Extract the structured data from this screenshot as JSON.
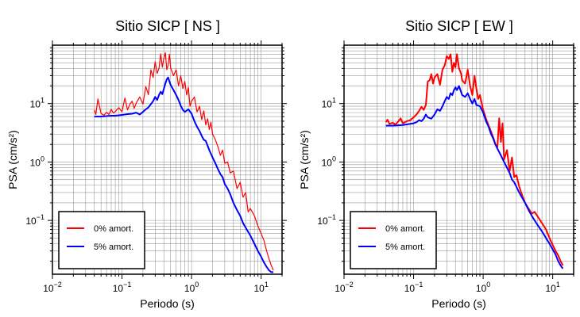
{
  "chart_data": [
    {
      "type": "line",
      "title": "Sitio SICP [ NS ]",
      "xlabel": "Periodo (s)",
      "ylabel": "PSA (cm/s²)",
      "xscale": "log",
      "yscale": "log",
      "xlim": [
        0.01,
        20
      ],
      "ylim": [
        0.012,
        100
      ],
      "xtick_labels": [
        {
          "base": "10",
          "exp": "−2"
        },
        {
          "base": "10",
          "exp": "−1"
        },
        {
          "base": "10",
          "exp": "0"
        },
        {
          "base": "10",
          "exp": "1"
        }
      ],
      "ytick_labels": [
        {
          "base": "10",
          "exp": "−1"
        },
        {
          "base": "10",
          "exp": "0"
        },
        {
          "base": "10",
          "exp": "1"
        }
      ],
      "grid": true,
      "legend_position": "bottom-left",
      "series": [
        {
          "name": "0% amort.",
          "color": "#ff0000",
          "x": [
            0.04,
            0.042,
            0.045,
            0.05,
            0.055,
            0.06,
            0.065,
            0.07,
            0.075,
            0.08,
            0.09,
            0.1,
            0.11,
            0.12,
            0.13,
            0.14,
            0.15,
            0.16,
            0.18,
            0.2,
            0.22,
            0.24,
            0.26,
            0.28,
            0.3,
            0.32,
            0.34,
            0.36,
            0.38,
            0.4,
            0.42,
            0.44,
            0.46,
            0.48,
            0.5,
            0.55,
            0.6,
            0.65,
            0.7,
            0.75,
            0.8,
            0.85,
            0.9,
            0.95,
            1.0,
            1.1,
            1.2,
            1.3,
            1.4,
            1.5,
            1.6,
            1.7,
            1.8,
            1.9,
            2.0,
            2.2,
            2.4,
            2.6,
            2.8,
            3.0,
            3.3,
            3.6,
            4.0,
            4.5,
            5.0,
            5.5,
            6.0,
            6.5,
            7.0,
            8.0,
            9.0,
            10.0,
            11.0,
            12.0,
            13.0,
            14.0,
            15.0
          ],
          "y": [
            7.8,
            6.5,
            12.0,
            6.8,
            6.3,
            7.1,
            6.5,
            8.0,
            6.9,
            7.3,
            8.5,
            7.2,
            12.5,
            7.8,
            9.8,
            11.0,
            8.3,
            10.2,
            13.0,
            9.8,
            19.5,
            14.2,
            38.0,
            28.0,
            52.0,
            33.0,
            40.0,
            71.0,
            42.0,
            60.0,
            74.0,
            38.0,
            45.0,
            70.0,
            41.0,
            30.0,
            38.0,
            20.0,
            30.0,
            18.0,
            24.0,
            14.0,
            19.0,
            9.0,
            11.0,
            13.0,
            7.2,
            9.0,
            5.3,
            7.5,
            4.3,
            5.5,
            3.6,
            4.8,
            3.0,
            2.4,
            1.8,
            1.3,
            1.6,
            0.95,
            1.0,
            0.65,
            0.7,
            0.35,
            0.45,
            0.25,
            0.3,
            0.14,
            0.16,
            0.12,
            0.08,
            0.06,
            0.045,
            0.03,
            0.022,
            0.017,
            0.014
          ]
        },
        {
          "name": "5% amort.",
          "color": "#0000ff",
          "x": [
            0.04,
            0.05,
            0.06,
            0.07,
            0.08,
            0.09,
            0.1,
            0.12,
            0.14,
            0.16,
            0.18,
            0.2,
            0.22,
            0.24,
            0.26,
            0.28,
            0.3,
            0.32,
            0.34,
            0.36,
            0.38,
            0.4,
            0.42,
            0.44,
            0.46,
            0.48,
            0.5,
            0.55,
            0.6,
            0.65,
            0.7,
            0.75,
            0.8,
            0.9,
            1.0,
            1.1,
            1.2,
            1.3,
            1.4,
            1.5,
            1.6,
            1.8,
            2.0,
            2.2,
            2.4,
            2.6,
            2.8,
            3.0,
            3.3,
            3.6,
            4.0,
            4.5,
            5.0,
            5.5,
            6.0,
            7.0,
            8.0,
            9.0,
            10.0,
            11.0,
            12.0,
            13.0,
            14.0,
            15.0
          ],
          "y": [
            6.0,
            6.0,
            6.1,
            6.2,
            6.2,
            6.3,
            6.4,
            6.6,
            6.7,
            7.0,
            6.5,
            7.2,
            8.0,
            8.6,
            9.8,
            11.0,
            13.0,
            11.5,
            14.0,
            16.0,
            14.5,
            18.0,
            22.0,
            26.0,
            28.0,
            24.0,
            21.0,
            17.0,
            14.0,
            11.5,
            9.2,
            7.8,
            7.2,
            8.0,
            6.7,
            5.0,
            4.0,
            3.4,
            2.8,
            2.4,
            2.3,
            1.6,
            1.2,
            0.95,
            0.75,
            0.62,
            0.55,
            0.42,
            0.35,
            0.28,
            0.2,
            0.15,
            0.12,
            0.09,
            0.075,
            0.055,
            0.04,
            0.03,
            0.024,
            0.019,
            0.016,
            0.014,
            0.013,
            0.013
          ]
        }
      ]
    },
    {
      "type": "line",
      "title": "Sitio SICP [ EW ]",
      "xlabel": "Periodo (s)",
      "ylabel": "PSA (cm/s²)",
      "xscale": "log",
      "yscale": "log",
      "xlim": [
        0.01,
        20
      ],
      "ylim": [
        0.012,
        100
      ],
      "xtick_labels": [
        {
          "base": "10",
          "exp": "−2"
        },
        {
          "base": "10",
          "exp": "−1"
        },
        {
          "base": "10",
          "exp": "0"
        },
        {
          "base": "10",
          "exp": "1"
        }
      ],
      "ytick_labels": [
        {
          "base": "10",
          "exp": "−1"
        },
        {
          "base": "10",
          "exp": "0"
        },
        {
          "base": "10",
          "exp": "1"
        }
      ],
      "grid": true,
      "legend_position": "bottom-left",
      "series": [
        {
          "name": "0% amort.",
          "color": "#ff0000",
          "x": [
            0.04,
            0.042,
            0.045,
            0.05,
            0.055,
            0.06,
            0.065,
            0.07,
            0.08,
            0.09,
            0.1,
            0.11,
            0.12,
            0.13,
            0.14,
            0.15,
            0.16,
            0.17,
            0.18,
            0.19,
            0.2,
            0.22,
            0.24,
            0.26,
            0.28,
            0.3,
            0.32,
            0.34,
            0.36,
            0.38,
            0.4,
            0.42,
            0.45,
            0.48,
            0.5,
            0.55,
            0.6,
            0.65,
            0.7,
            0.75,
            0.8,
            0.85,
            0.9,
            1.0,
            1.1,
            1.2,
            1.3,
            1.4,
            1.5,
            1.6,
            1.7,
            1.8,
            1.9,
            2.0,
            2.2,
            2.4,
            2.6,
            2.8,
            3.0,
            3.3,
            3.6,
            4.0,
            4.5,
            5.0,
            5.5,
            6.0,
            7.0,
            8.0,
            9.0,
            10.0,
            11.0,
            12.0,
            13.0,
            14.0
          ],
          "y": [
            4.8,
            5.3,
            4.5,
            4.7,
            4.4,
            4.9,
            5.6,
            4.6,
            5.0,
            5.2,
            5.8,
            6.5,
            7.5,
            8.8,
            7.8,
            9.5,
            24.0,
            25.0,
            32.0,
            22.0,
            28.0,
            32.0,
            21.0,
            38.0,
            45.0,
            65.0,
            58.0,
            70.0,
            35.0,
            50.0,
            42.0,
            70.0,
            40.0,
            33.0,
            25.0,
            22.0,
            38.0,
            20.0,
            14.0,
            30.0,
            18.0,
            12.0,
            14.0,
            7.8,
            5.5,
            4.2,
            3.3,
            2.6,
            2.0,
            1.8,
            5.6,
            2.2,
            4.6,
            1.1,
            1.6,
            0.7,
            1.2,
            0.55,
            0.6,
            0.38,
            0.28,
            0.2,
            0.16,
            0.13,
            0.14,
            0.12,
            0.09,
            0.07,
            0.05,
            0.038,
            0.03,
            0.025,
            0.02,
            0.017
          ]
        },
        {
          "name": "5% amort.",
          "color": "#0000ff",
          "x": [
            0.04,
            0.05,
            0.06,
            0.07,
            0.08,
            0.09,
            0.1,
            0.11,
            0.12,
            0.13,
            0.14,
            0.15,
            0.16,
            0.18,
            0.2,
            0.22,
            0.24,
            0.26,
            0.28,
            0.3,
            0.32,
            0.34,
            0.36,
            0.38,
            0.4,
            0.42,
            0.45,
            0.48,
            0.5,
            0.55,
            0.6,
            0.65,
            0.7,
            0.75,
            0.8,
            0.9,
            1.0,
            1.1,
            1.2,
            1.3,
            1.4,
            1.5,
            1.6,
            1.8,
            2.0,
            2.2,
            2.4,
            2.6,
            2.8,
            3.0,
            3.3,
            3.6,
            4.0,
            4.5,
            5.0,
            5.5,
            6.0,
            7.0,
            8.0,
            9.0,
            10.0,
            11.0,
            12.0,
            13.0,
            14.0
          ],
          "y": [
            4.2,
            4.2,
            4.25,
            4.3,
            4.4,
            4.5,
            4.6,
            4.8,
            5.2,
            5.0,
            5.5,
            6.5,
            5.8,
            5.5,
            6.5,
            8.0,
            7.5,
            9.0,
            11.0,
            13.0,
            12.0,
            15.0,
            14.0,
            17.0,
            19.0,
            17.0,
            20.0,
            16.0,
            14.0,
            13.0,
            15.0,
            12.0,
            10.0,
            12.0,
            9.5,
            9.0,
            7.0,
            5.0,
            4.0,
            3.0,
            2.5,
            2.0,
            1.7,
            1.3,
            1.0,
            0.8,
            0.65,
            0.5,
            0.45,
            0.38,
            0.3,
            0.25,
            0.2,
            0.15,
            0.12,
            0.1,
            0.085,
            0.065,
            0.05,
            0.04,
            0.032,
            0.026,
            0.02,
            0.017,
            0.015
          ]
        }
      ]
    }
  ]
}
